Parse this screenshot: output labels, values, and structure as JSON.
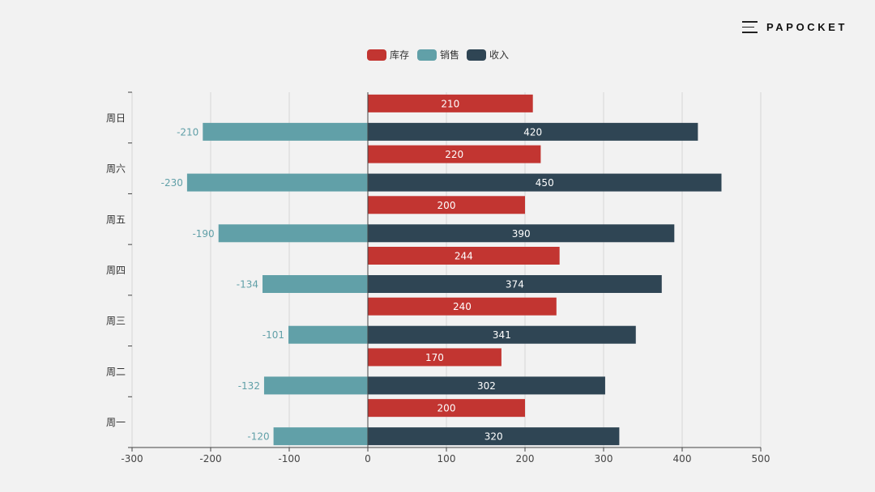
{
  "brand": {
    "name": "PAPOCKET",
    "menu_icon": "hamburger-menu-icon"
  },
  "chart_data": {
    "type": "bar",
    "orientation": "horizontal",
    "title": "",
    "xlabel": "",
    "ylabel": "",
    "categories": [
      "周一",
      "周二",
      "周三",
      "周四",
      "周五",
      "周六",
      "周日"
    ],
    "series": [
      {
        "name": "库存",
        "color": "#c23531",
        "values": [
          200,
          170,
          240,
          244,
          200,
          220,
          210
        ],
        "label_position": "inside"
      },
      {
        "name": "销售",
        "color": "#61a0a8",
        "values": [
          -120,
          -132,
          -101,
          -134,
          -190,
          -230,
          -210
        ],
        "label_position": "left"
      },
      {
        "name": "收入",
        "color": "#2f4554",
        "values": [
          320,
          302,
          341,
          374,
          390,
          450,
          420
        ],
        "label_position": "inside"
      }
    ],
    "x_ticks": [
      -300,
      -200,
      -100,
      0,
      100,
      200,
      300,
      400,
      500
    ],
    "xlim": [
      -300,
      500
    ],
    "grid": true,
    "legend_position": "top-center"
  }
}
